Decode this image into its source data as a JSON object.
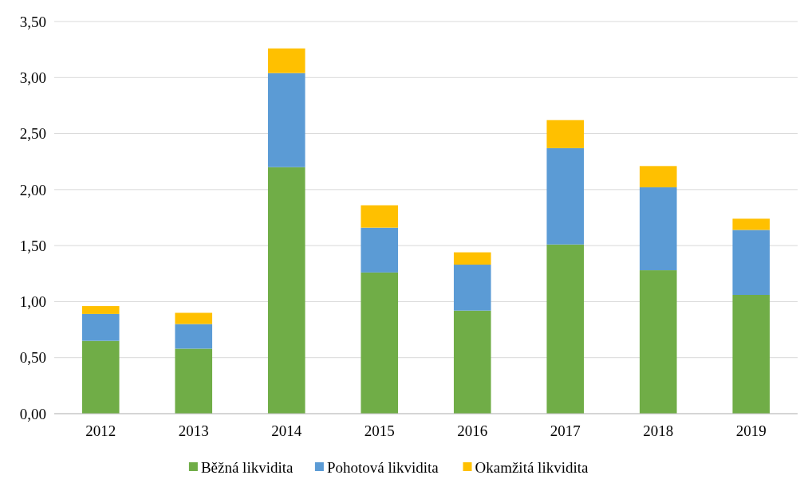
{
  "chart_data": {
    "type": "bar",
    "stacked": true,
    "categories": [
      "2012",
      "2013",
      "2014",
      "2015",
      "2016",
      "2017",
      "2018",
      "2019"
    ],
    "series": [
      {
        "name": "Běžná likvidita",
        "color": "#70ad47",
        "values": [
          0.65,
          0.58,
          2.2,
          1.26,
          0.92,
          1.51,
          1.28,
          1.06
        ]
      },
      {
        "name": "Pohotová likvidita",
        "color": "#5b9bd5",
        "values": [
          0.24,
          0.22,
          0.84,
          0.4,
          0.41,
          0.86,
          0.74,
          0.58
        ]
      },
      {
        "name": "Okamžitá likvidita",
        "color": "#ffc000",
        "values": [
          0.07,
          0.1,
          0.22,
          0.2,
          0.11,
          0.25,
          0.19,
          0.1
        ]
      }
    ],
    "ylim": [
      0,
      3.5
    ],
    "yticks": [
      {
        "value": 0,
        "label": "0,00"
      },
      {
        "value": 0.5,
        "label": "0,50"
      },
      {
        "value": 1,
        "label": "1,00"
      },
      {
        "value": 1.5,
        "label": "1,50"
      },
      {
        "value": 2,
        "label": "2,00"
      },
      {
        "value": 2.5,
        "label": "2,50"
      },
      {
        "value": 3,
        "label": "3,00"
      },
      {
        "value": 3.5,
        "label": "3,50"
      }
    ],
    "grid": "y",
    "legend": "bottom"
  }
}
